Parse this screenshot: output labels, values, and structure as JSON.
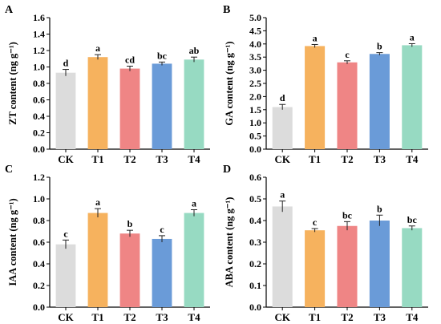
{
  "colors": {
    "CK": "#dcdcdc",
    "T1": "#f6b25e",
    "T2": "#ef8585",
    "T3": "#6a9bd8",
    "T4": "#97dac2",
    "axis": "#000000"
  },
  "chart_data": [
    {
      "panel": "A",
      "type": "bar",
      "ylabel": "ZT content (ng g⁻¹)",
      "categories": [
        "CK",
        "T1",
        "T2",
        "T3",
        "T4"
      ],
      "values": [
        0.93,
        1.12,
        0.98,
        1.04,
        1.09
      ],
      "errors": [
        0.04,
        0.03,
        0.03,
        0.02,
        0.03
      ],
      "letters": [
        "d",
        "a",
        "cd",
        "bc",
        "ab"
      ],
      "ylim": [
        0,
        1.6
      ],
      "yticks": [
        "0.0",
        "0.2",
        "0.4",
        "0.6",
        "0.8",
        "1.0",
        "1.2",
        "1.4",
        "1.6"
      ],
      "grid": false,
      "legend": "none"
    },
    {
      "panel": "B",
      "type": "bar",
      "ylabel": "GA content (ng g⁻¹)",
      "categories": [
        "CK",
        "T1",
        "T2",
        "T3",
        "T4"
      ],
      "values": [
        1.6,
        3.92,
        3.3,
        3.62,
        3.95
      ],
      "errors": [
        0.1,
        0.06,
        0.06,
        0.05,
        0.06
      ],
      "letters": [
        "d",
        "a",
        "c",
        "b",
        "a"
      ],
      "ylim": [
        0,
        5.0
      ],
      "yticks": [
        "0.0",
        "0.5",
        "1.0",
        "1.5",
        "2.0",
        "2.5",
        "3.0",
        "3.5",
        "4.0",
        "4.5",
        "5.0"
      ],
      "grid": false,
      "legend": "none"
    },
    {
      "panel": "C",
      "type": "bar",
      "ylabel": "IAA content (ng g⁻¹)",
      "categories": [
        "CK",
        "T1",
        "T2",
        "T3",
        "T4"
      ],
      "values": [
        0.58,
        0.87,
        0.68,
        0.63,
        0.87
      ],
      "errors": [
        0.04,
        0.04,
        0.03,
        0.03,
        0.03
      ],
      "letters": [
        "c",
        "a",
        "b",
        "c",
        "a"
      ],
      "ylim": [
        0,
        1.2
      ],
      "yticks": [
        "0.0",
        "0.2",
        "0.4",
        "0.6",
        "0.8",
        "1.0",
        "1.2"
      ],
      "grid": false,
      "legend": "none"
    },
    {
      "panel": "D",
      "type": "bar",
      "ylabel": "ABA content (ng g⁻¹)",
      "categories": [
        "CK",
        "T1",
        "T2",
        "T3",
        "T4"
      ],
      "values": [
        0.465,
        0.355,
        0.375,
        0.4,
        0.365
      ],
      "errors": [
        0.025,
        0.008,
        0.02,
        0.025,
        0.01
      ],
      "letters": [
        "a",
        "c",
        "bc",
        "b",
        "bc"
      ],
      "ylim": [
        0,
        0.6
      ],
      "yticks": [
        "0.0",
        "0.1",
        "0.2",
        "0.3",
        "0.4",
        "0.5",
        "0.6"
      ],
      "grid": false,
      "legend": "none"
    }
  ]
}
